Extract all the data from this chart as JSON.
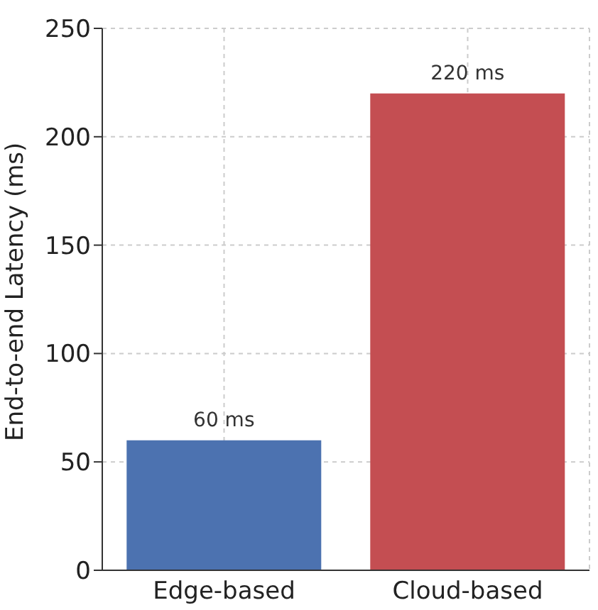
{
  "chart_data": {
    "type": "bar",
    "ylabel": "End-to-end Latency (ms)",
    "categories": [
      "Edge-based",
      "Cloud-based"
    ],
    "values": [
      60,
      220
    ],
    "colors": [
      "#4c72b0",
      "#c44e52"
    ],
    "value_labels": [
      "60 ms",
      "220 ms"
    ],
    "ylim": [
      0,
      250
    ],
    "yticks": [
      0,
      50,
      100,
      150,
      200,
      250
    ],
    "grid": true
  }
}
